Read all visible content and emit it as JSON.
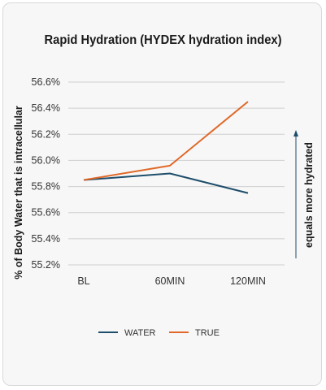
{
  "chart_data": {
    "type": "line",
    "title": "Rapid Hydration (HYDEX hydration index)",
    "ylabel": "% of Body Water that is intracellular",
    "side_annotation": "equals more hydrated",
    "categories": [
      "BL",
      "60MIN",
      "120MIN"
    ],
    "ylim": [
      55.2,
      56.6
    ],
    "yticks": [
      "56.6%",
      "56.4%",
      "56.2%",
      "56.0%",
      "55.8%",
      "55.6%",
      "55.4%",
      "55.2%"
    ],
    "ytick_values": [
      56.6,
      56.4,
      56.2,
      56.0,
      55.8,
      55.6,
      55.4,
      55.2
    ],
    "grid": true,
    "legend_position": "bottom",
    "series": [
      {
        "name": "WATER",
        "color": "#1d4e6b",
        "values": [
          55.85,
          55.9,
          55.75
        ]
      },
      {
        "name": "TRUE",
        "color": "#e0692a",
        "values": [
          55.85,
          55.96,
          56.45
        ]
      }
    ]
  }
}
